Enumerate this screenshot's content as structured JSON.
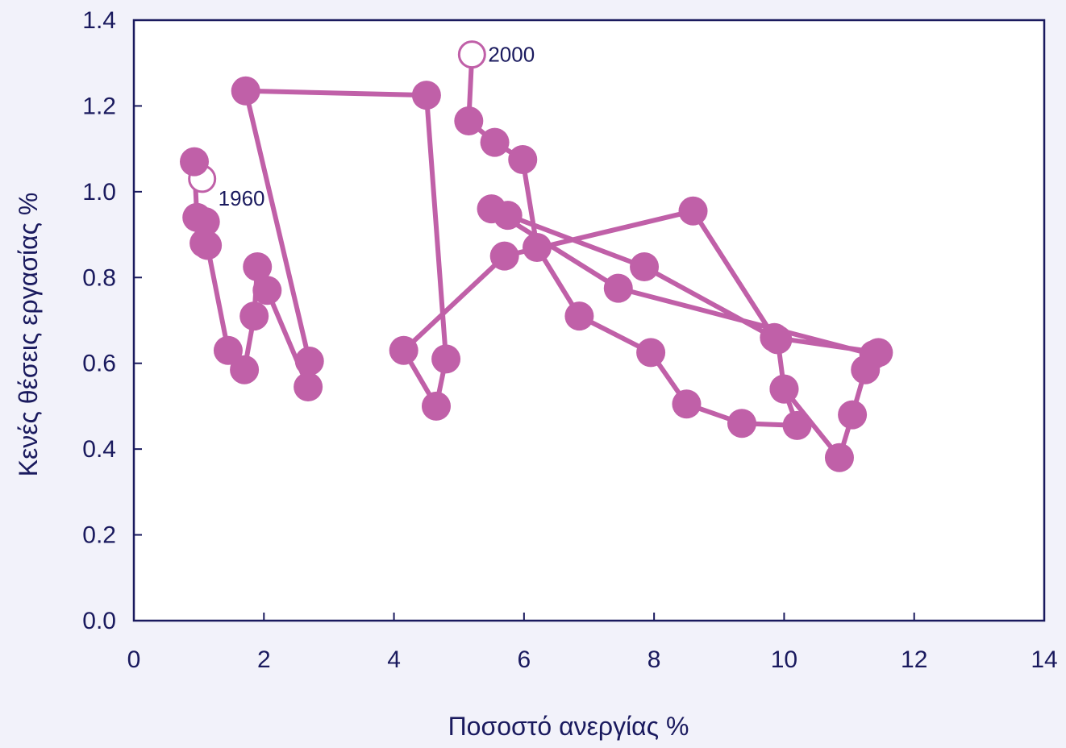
{
  "chart_data": {
    "type": "scatter",
    "title": "",
    "xlabel": "Ποσοστό ανεργίας %",
    "ylabel": "Κενές θέσεις εργασίας %",
    "xlim": [
      0,
      14
    ],
    "ylim": [
      0,
      1.4
    ],
    "x_ticks": [
      "0",
      "2",
      "4",
      "6",
      "8",
      "10",
      "12",
      "14"
    ],
    "y_ticks": [
      "0.0",
      "0.2",
      "0.4",
      "0.6",
      "0.8",
      "1.0",
      "1.2",
      "1.4"
    ],
    "grid": false,
    "connected": true,
    "colors": {
      "series": "#c060a8",
      "axis": "#1a1a5e",
      "plot_bg": "#ffffff",
      "page_bg": "#f2f2fa"
    },
    "series": [
      {
        "points": [
          {
            "x": 1.05,
            "y": 1.03,
            "label": "1960",
            "hollow": true
          },
          {
            "x": 0.93,
            "y": 1.07
          },
          {
            "x": 0.97,
            "y": 0.94
          },
          {
            "x": 1.1,
            "y": 0.93
          },
          {
            "x": 1.08,
            "y": 0.88
          },
          {
            "x": 1.13,
            "y": 0.875
          },
          {
            "x": 1.45,
            "y": 0.63
          },
          {
            "x": 1.7,
            "y": 0.585
          },
          {
            "x": 1.85,
            "y": 0.71
          },
          {
            "x": 1.9,
            "y": 0.825
          },
          {
            "x": 2.05,
            "y": 0.77
          },
          {
            "x": 2.68,
            "y": 0.545
          },
          {
            "x": 2.7,
            "y": 0.605
          },
          {
            "x": 1.72,
            "y": 1.235
          },
          {
            "x": 4.5,
            "y": 1.225
          },
          {
            "x": 4.8,
            "y": 0.61
          },
          {
            "x": 4.65,
            "y": 0.5
          },
          {
            "x": 4.15,
            "y": 0.63
          },
          {
            "x": 5.7,
            "y": 0.85
          },
          {
            "x": 8.6,
            "y": 0.955
          },
          {
            "x": 9.85,
            "y": 0.66
          },
          {
            "x": 11.45,
            "y": 0.625
          },
          {
            "x": 11.38,
            "y": 0.62
          },
          {
            "x": 7.45,
            "y": 0.775
          },
          {
            "x": 5.5,
            "y": 0.96
          },
          {
            "x": 5.75,
            "y": 0.945
          },
          {
            "x": 7.85,
            "y": 0.825
          },
          {
            "x": 9.9,
            "y": 0.655
          },
          {
            "x": 10.0,
            "y": 0.54
          },
          {
            "x": 10.2,
            "y": 0.455
          },
          {
            "x": 9.35,
            "y": 0.46
          },
          {
            "x": 8.5,
            "y": 0.505
          },
          {
            "x": 7.95,
            "y": 0.625
          },
          {
            "x": 6.85,
            "y": 0.71
          },
          {
            "x": 6.2,
            "y": 0.87
          },
          {
            "x": 5.98,
            "y": 1.075
          },
          {
            "x": 5.55,
            "y": 1.115
          },
          {
            "x": 5.15,
            "y": 1.165
          },
          {
            "x": 5.2,
            "y": 1.32,
            "label": "2000",
            "hollow": true
          }
        ]
      },
      {
        "points": [
          {
            "x": 11.25,
            "y": 0.585
          },
          {
            "x": 11.05,
            "y": 0.48
          },
          {
            "x": 10.85,
            "y": 0.38
          },
          {
            "x": 10.0,
            "y": 0.54
          }
        ]
      }
    ]
  }
}
